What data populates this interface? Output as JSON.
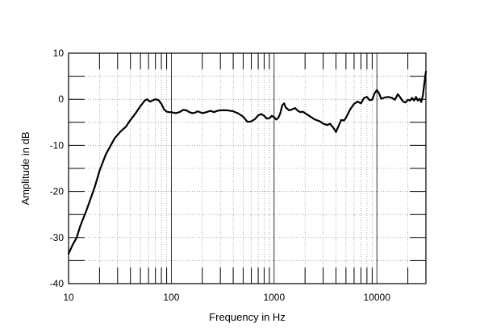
{
  "chart_data": {
    "type": "line",
    "xlabel": "Frequency in Hz",
    "ylabel": "Amplitude in dB",
    "xscale": "log",
    "xlim": [
      10,
      30000
    ],
    "ylim": [
      -40,
      10
    ],
    "grid": true,
    "x_tick_labels": [
      "10",
      "100",
      "1000",
      "10000"
    ],
    "x_tick_values": [
      10,
      100,
      1000,
      10000
    ],
    "y_tick_labels": [
      "10",
      "0",
      "-10",
      "-20",
      "-30",
      "-40"
    ],
    "y_tick_values": [
      10,
      0,
      -10,
      -20,
      -30,
      -40
    ],
    "series": [
      {
        "line_color": "#000000",
        "x": [
          10,
          11,
          12,
          13,
          15,
          18,
          20,
          23,
          25,
          28,
          32,
          36,
          40,
          45,
          50,
          55,
          58,
          62,
          65,
          70,
          75,
          80,
          85,
          90,
          95,
          100,
          110,
          120,
          130,
          140,
          150,
          160,
          170,
          180,
          200,
          220,
          240,
          260,
          280,
          300,
          350,
          400,
          450,
          500,
          550,
          600,
          650,
          700,
          750,
          800,
          850,
          900,
          950,
          1000,
          1050,
          1100,
          1150,
          1200,
          1250,
          1300,
          1400,
          1500,
          1600,
          1700,
          1800,
          1900,
          2000,
          2200,
          2500,
          2800,
          3000,
          3300,
          3500,
          3800,
          4000,
          4200,
          4500,
          4800,
          5000,
          5500,
          6000,
          6500,
          7000,
          7500,
          8000,
          8500,
          9000,
          9500,
          10000,
          10500,
          11000,
          12000,
          13000,
          14000,
          15000,
          16000,
          17000,
          18000,
          19000,
          20000,
          21000,
          22000,
          23000,
          24000,
          25000,
          26000,
          27000,
          28000,
          29000,
          30000
        ],
        "y": [
          -33.5,
          -31.5,
          -30,
          -27.5,
          -24,
          -19,
          -15.5,
          -12,
          -10.5,
          -8.5,
          -7,
          -6,
          -4.5,
          -3,
          -1.5,
          -0.3,
          0,
          -0.5,
          -0.3,
          0,
          -0.2,
          -1,
          -2.2,
          -2.7,
          -2.8,
          -2.8,
          -3,
          -2.8,
          -2.3,
          -2.4,
          -2.8,
          -3,
          -2.9,
          -2.6,
          -3,
          -2.8,
          -2.5,
          -2.8,
          -2.5,
          -2.4,
          -2.4,
          -2.6,
          -3.1,
          -3.8,
          -4.9,
          -4.8,
          -4.3,
          -3.5,
          -3.2,
          -3.6,
          -4.2,
          -4.1,
          -3.6,
          -3.9,
          -4.4,
          -4.0,
          -3.0,
          -1.3,
          -0.9,
          -1.8,
          -2.4,
          -2.2,
          -1.9,
          -2.5,
          -2.8,
          -2.7,
          -3.0,
          -3.6,
          -4.4,
          -4.8,
          -5.3,
          -5.6,
          -5.3,
          -6.3,
          -7.1,
          -6.0,
          -4.5,
          -4.6,
          -4.0,
          -2.2,
          -1.0,
          -0.5,
          -0.9,
          0.3,
          0.5,
          -0.2,
          -0.1,
          1.3,
          2.0,
          1.3,
          0.1,
          0.4,
          0.5,
          0.3,
          -0.1,
          1.1,
          0.3,
          -0.5,
          -0.7,
          -0.1,
          -0.3,
          0.3,
          -0.3,
          0.5,
          -0.3,
          0.1,
          -0.6,
          0.8,
          3.5,
          6.0
        ]
      }
    ]
  }
}
